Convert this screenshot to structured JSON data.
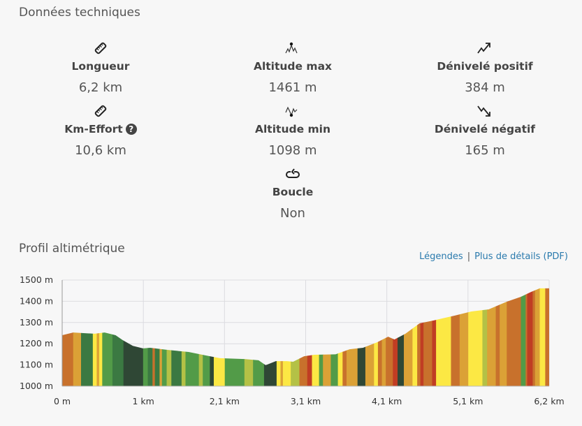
{
  "section_title": "Données techniques",
  "stats": [
    {
      "icon": "ruler-icon",
      "label": "Longueur",
      "value": "6,2 km"
    },
    {
      "icon": "altitude-max-icon",
      "label": "Altitude max",
      "value": "1461 m"
    },
    {
      "icon": "elevation-gain-icon",
      "label": "Dénivelé positif",
      "value": "384 m"
    },
    {
      "icon": "ruler-icon",
      "label": "Km-Effort",
      "value": "10,6 km",
      "help": "?"
    },
    {
      "icon": "altitude-min-icon",
      "label": "Altitude min",
      "value": "1098 m"
    },
    {
      "icon": "elevation-loss-icon",
      "label": "Dénivelé négatif",
      "value": "165 m"
    },
    {
      "icon": "loop-icon",
      "label": "Boucle",
      "value": "Non"
    }
  ],
  "profile_title": "Profil altimétrique",
  "links": {
    "legend": "Légendes",
    "details": "Plus de détails (PDF)"
  },
  "colors": {
    "O": "#c8712c",
    "G": "#dba136",
    "Y": "#fce844",
    "YG": "#b4c146",
    "Gr": "#529b48",
    "M": "#3b7942",
    "D": "#2f4735",
    "R": "#c03d23",
    "link": "#2a7aad"
  },
  "chart_data": {
    "type": "area",
    "xlim": [
      0,
      6.2
    ],
    "ylim": [
      1000,
      1500
    ],
    "x_ticks": [
      "0 m",
      "1 km",
      "2,1 km",
      "3,1 km",
      "4,1 km",
      "5,1 km",
      "6,2 km"
    ],
    "y_ticks": [
      "1000 m",
      "1100 m",
      "1200 m",
      "1300 m",
      "1400 m",
      "1500 m"
    ],
    "grid": true,
    "x": [
      0,
      0.14,
      0.41,
      0.54,
      0.68,
      0.77,
      0.9,
      1.03,
      1.12,
      1.34,
      1.61,
      1.88,
      2.01,
      2.32,
      2.5,
      2.59,
      2.72,
      2.86,
      2.94,
      3.08,
      3.21,
      3.48,
      3.66,
      3.83,
      4.01,
      4.15,
      4.23,
      4.37,
      4.55,
      4.72,
      4.99,
      5.21,
      5.43,
      5.66,
      5.84,
      5.97,
      6.08,
      6.2
    ],
    "y": [
      1240,
      1253,
      1247,
      1253,
      1240,
      1217,
      1190,
      1178,
      1181,
      1171,
      1161,
      1141,
      1132,
      1128,
      1122,
      1099,
      1118,
      1118,
      1115,
      1141,
      1148,
      1150,
      1174,
      1181,
      1207,
      1233,
      1220,
      1247,
      1296,
      1309,
      1332,
      1352,
      1362,
      1398,
      1421,
      1444,
      1461,
      1461
    ],
    "slope_segments": [
      [
        0.14,
        "O"
      ],
      [
        0.24,
        "G"
      ],
      [
        0.39,
        "M"
      ],
      [
        0.44,
        "Y"
      ],
      [
        0.47,
        "G"
      ],
      [
        0.51,
        "Y"
      ],
      [
        0.64,
        "Gr"
      ],
      [
        0.78,
        "M"
      ],
      [
        1.03,
        "D"
      ],
      [
        1.09,
        "Gr"
      ],
      [
        1.15,
        "M"
      ],
      [
        1.18,
        "O"
      ],
      [
        1.24,
        "M"
      ],
      [
        1.27,
        "G"
      ],
      [
        1.33,
        "Gr"
      ],
      [
        1.39,
        "YG"
      ],
      [
        1.52,
        "M"
      ],
      [
        1.57,
        "YG"
      ],
      [
        1.74,
        "Gr"
      ],
      [
        1.79,
        "YG"
      ],
      [
        1.88,
        "Gr"
      ],
      [
        1.93,
        "D"
      ],
      [
        2.07,
        "Y"
      ],
      [
        2.32,
        "Gr"
      ],
      [
        2.43,
        "YG"
      ],
      [
        2.57,
        "Gr"
      ],
      [
        2.73,
        "D"
      ],
      [
        2.78,
        "Y"
      ],
      [
        2.81,
        "G"
      ],
      [
        2.91,
        "Y"
      ],
      [
        3.02,
        "YG"
      ],
      [
        3.12,
        "O"
      ],
      [
        3.18,
        "R"
      ],
      [
        3.27,
        "Y"
      ],
      [
        3.32,
        "Gr"
      ],
      [
        3.42,
        "G"
      ],
      [
        3.51,
        "Gr"
      ],
      [
        3.57,
        "Y"
      ],
      [
        3.62,
        "O"
      ],
      [
        3.76,
        "G"
      ],
      [
        3.86,
        "D"
      ],
      [
        3.97,
        "G"
      ],
      [
        4.02,
        "Y"
      ],
      [
        4.07,
        "O"
      ],
      [
        4.12,
        "G"
      ],
      [
        4.21,
        "O"
      ],
      [
        4.27,
        "R"
      ],
      [
        4.35,
        "D"
      ],
      [
        4.46,
        "G"
      ],
      [
        4.52,
        "Y"
      ],
      [
        4.56,
        "O"
      ],
      [
        4.6,
        "R"
      ],
      [
        4.71,
        "O"
      ],
      [
        4.76,
        "R"
      ],
      [
        4.95,
        "Y"
      ],
      [
        5.06,
        "O"
      ],
      [
        5.17,
        "G"
      ],
      [
        5.35,
        "Y"
      ],
      [
        5.41,
        "YG"
      ],
      [
        5.52,
        "G"
      ],
      [
        5.57,
        "O"
      ],
      [
        5.66,
        "G"
      ],
      [
        5.84,
        "O"
      ],
      [
        5.9,
        "Gr"
      ],
      [
        5.92,
        "O"
      ],
      [
        5.99,
        "R"
      ],
      [
        6.02,
        "O"
      ],
      [
        6.08,
        "G"
      ],
      [
        6.15,
        "Y"
      ],
      [
        6.2,
        "O"
      ]
    ]
  }
}
